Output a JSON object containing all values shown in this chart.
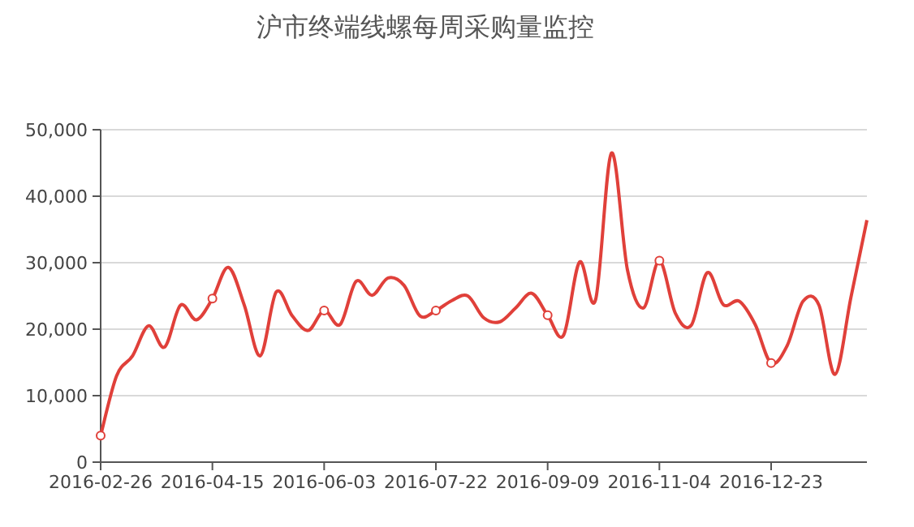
{
  "chart_data": {
    "type": "line",
    "title": "沪市终端线螺每周采购量监控",
    "categories": [
      "2016-02-26",
      null,
      null,
      null,
      null,
      null,
      null,
      "2016-04-15",
      null,
      null,
      null,
      null,
      null,
      null,
      "2016-06-03",
      null,
      null,
      null,
      null,
      null,
      null,
      "2016-07-22",
      null,
      null,
      null,
      null,
      null,
      null,
      "2016-09-09",
      null,
      null,
      null,
      null,
      null,
      null,
      "2016-11-04",
      null,
      null,
      null,
      null,
      null,
      null,
      "2016-12-23",
      null,
      null,
      null,
      null,
      null,
      null
    ],
    "series": [
      {
        "color": "#e0403a",
        "values": [
          4000,
          13000,
          16000,
          20500,
          17300,
          23600,
          21400,
          24600,
          29300,
          23600,
          16000,
          25600,
          22000,
          19800,
          22800,
          20700,
          27200,
          25100,
          27700,
          26600,
          22000,
          22800,
          24300,
          25000,
          21700,
          21100,
          23200,
          25400,
          22100,
          19100,
          30100,
          24400,
          46500,
          28900,
          23200,
          30300,
          22400,
          20600,
          28500,
          23700,
          24200,
          20700,
          14900,
          17500,
          24200,
          23600,
          13200,
          24800,
          36400
        ]
      }
    ],
    "ylim": [
      0,
      50000
    ],
    "yticks": [
      {
        "value": 0,
        "label": "0"
      },
      {
        "value": 10000,
        "label": "10,000"
      },
      {
        "value": 20000,
        "label": "20,000"
      },
      {
        "value": 30000,
        "label": "30,000"
      },
      {
        "value": 40000,
        "label": "40,000"
      },
      {
        "value": 50000,
        "label": "50,000"
      }
    ],
    "grid": "y",
    "legend": false,
    "line_style": "solid"
  }
}
